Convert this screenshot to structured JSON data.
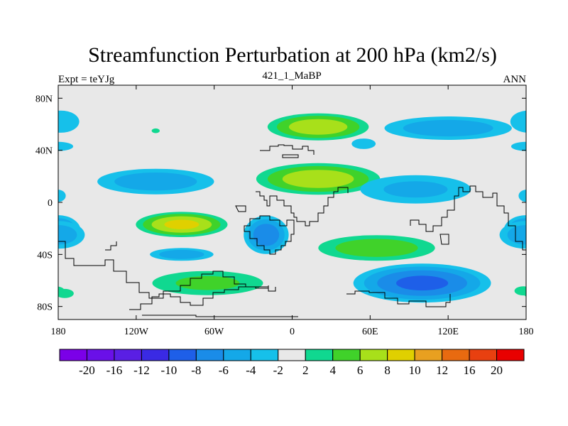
{
  "chart_data": {
    "type": "heatmap",
    "subtype": "filled-contour-map",
    "title": "Streamfunction Perturbation at 200 hPa (km2/s)",
    "left_label": "Expt = teYJg",
    "center_label": "421_1_MaBP",
    "right_label": "ANN",
    "xlim": [
      -180,
      180
    ],
    "ylim": [
      -90,
      90
    ],
    "x_ticks": [
      {
        "value": -180,
        "label": "180"
      },
      {
        "value": -120,
        "label": "120W"
      },
      {
        "value": -60,
        "label": "60W"
      },
      {
        "value": 0,
        "label": "0"
      },
      {
        "value": 60,
        "label": "60E"
      },
      {
        "value": 120,
        "label": "120E"
      },
      {
        "value": 180,
        "label": "180"
      }
    ],
    "y_ticks": [
      {
        "value": 80,
        "label": "80N"
      },
      {
        "value": 40,
        "label": "40N"
      },
      {
        "value": 0,
        "label": "0"
      },
      {
        "value": -40,
        "label": "40S"
      },
      {
        "value": -80,
        "label": "80S"
      }
    ],
    "color_levels": [
      -20,
      -16,
      -12,
      -10,
      -8,
      -6,
      -4,
      -2,
      2,
      4,
      6,
      8,
      10,
      12,
      16,
      20
    ],
    "colorbar_colors": [
      "#7b00e8",
      "#6a10e8",
      "#5a1fe4",
      "#3a2ae4",
      "#1e5fe8",
      "#1a8ce8",
      "#14a8e8",
      "#16c0ea",
      "#e8e8e8",
      "#10d890",
      "#40d22a",
      "#a8e01a",
      "#e0d000",
      "#e8a020",
      "#e86a10",
      "#e84010",
      "#e80000"
    ],
    "background_color": "#e8e8e8",
    "coastline_color": "#000000",
    "field_blobs": [
      {
        "lon": -178,
        "lat": 62,
        "dlon": 20,
        "dlat": 12,
        "amp": -4
      },
      {
        "lon": 20,
        "lat": 58,
        "dlon": 45,
        "dlat": 12,
        "amp": 8
      },
      {
        "lon": -105,
        "lat": 55,
        "dlon": 7,
        "dlat": 4,
        "amp": 2.5
      },
      {
        "lon": 120,
        "lat": 57,
        "dlon": 60,
        "dlat": 11,
        "amp": -6
      },
      {
        "lon": 55,
        "lat": 45,
        "dlon": 16,
        "dlat": 7,
        "amp": -3
      },
      {
        "lon": 180,
        "lat": 43,
        "dlon": 20,
        "dlat": 6,
        "amp": -3
      },
      {
        "lon": -105,
        "lat": 16,
        "dlon": 55,
        "dlat": 12,
        "amp": -6
      },
      {
        "lon": 20,
        "lat": 18,
        "dlon": 55,
        "dlat": 14,
        "amp": 8
      },
      {
        "lon": 95,
        "lat": 10,
        "dlon": 55,
        "dlat": 14,
        "amp": -5
      },
      {
        "lon": 180,
        "lat": 5,
        "dlon": 10,
        "dlat": 8,
        "amp": -3
      },
      {
        "lon": -180,
        "lat": -22,
        "dlon": 20,
        "dlat": 14,
        "amp": -8
      },
      {
        "lon": -85,
        "lat": -17,
        "dlon": 40,
        "dlat": 11,
        "amp": 9
      },
      {
        "lon": -85,
        "lat": -40,
        "dlon": 30,
        "dlat": 6,
        "amp": -6
      },
      {
        "lon": -20,
        "lat": -25,
        "dlon": 20,
        "dlat": 17,
        "amp": -8
      },
      {
        "lon": 65,
        "lat": -35,
        "dlon": 55,
        "dlat": 12,
        "amp": 6
      },
      {
        "lon": 180,
        "lat": -25,
        "dlon": 25,
        "dlat": 13,
        "amp": -6
      },
      {
        "lon": -175,
        "lat": -70,
        "dlon": 12,
        "dlat": 6,
        "amp": 3
      },
      {
        "lon": -65,
        "lat": -62,
        "dlon": 55,
        "dlat": 12,
        "amp": 5
      },
      {
        "lon": 100,
        "lat": -62,
        "dlon": 60,
        "dlat": 17,
        "amp": -9
      },
      {
        "lon": 178,
        "lat": -68,
        "dlon": 12,
        "dlat": 6,
        "amp": 3
      }
    ]
  }
}
